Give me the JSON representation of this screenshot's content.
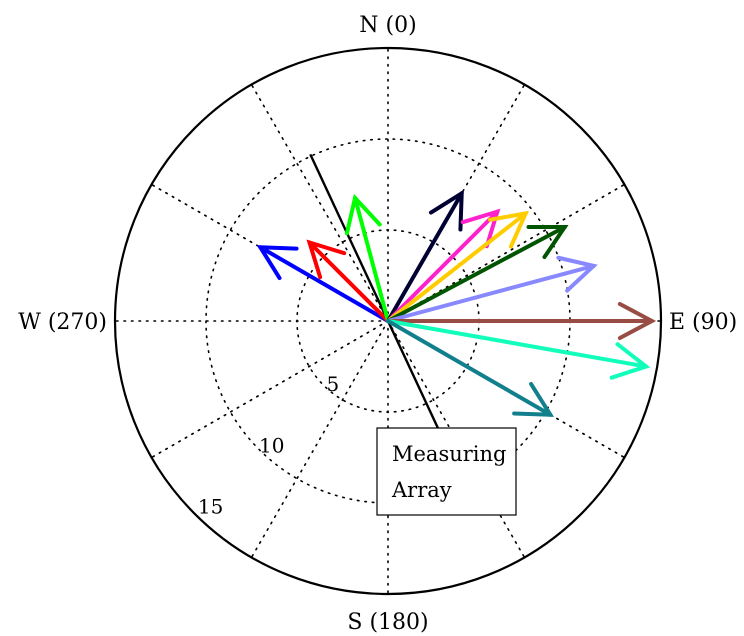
{
  "chart_data": {
    "type": "polar-vector",
    "direction_labels": {
      "north": "N (0)",
      "east": "E (90)",
      "south": "S (180)",
      "west": "W (270)"
    },
    "radial_ticks": [
      5,
      10,
      15
    ],
    "rlim": [
      0,
      15
    ],
    "grid": true,
    "grid_angular_step_deg": 30,
    "annotation": {
      "line_label": "Measuring Array",
      "line_label_lines": [
        "Measuring",
        "Array"
      ],
      "line_bearing_deg": [
        335,
        155
      ]
    },
    "vectors": [
      {
        "bearing": 300,
        "magnitude": 8.1,
        "color": "#0000ff"
      },
      {
        "bearing": 315,
        "magnitude": 6.1,
        "color": "#ff0000"
      },
      {
        "bearing": 345,
        "magnitude": 7.0,
        "color": "#00ff00"
      },
      {
        "bearing": 30,
        "magnitude": 8.1,
        "color": "#000033"
      },
      {
        "bearing": 45,
        "magnitude": 8.5,
        "color": "#ff22cc"
      },
      {
        "bearing": 52,
        "magnitude": 9.6,
        "color": "#ffcc00"
      },
      {
        "bearing": 62,
        "magnitude": 11.0,
        "color": "#005500"
      },
      {
        "bearing": 75,
        "magnitude": 11.7,
        "color": "#8888ff"
      },
      {
        "bearing": 90,
        "magnitude": 14.5,
        "color": "#994c44"
      },
      {
        "bearing": 100,
        "magnitude": 14.4,
        "color": "#11ffbb"
      },
      {
        "bearing": 120,
        "magnitude": 10.3,
        "color": "#117f8c"
      }
    ]
  }
}
